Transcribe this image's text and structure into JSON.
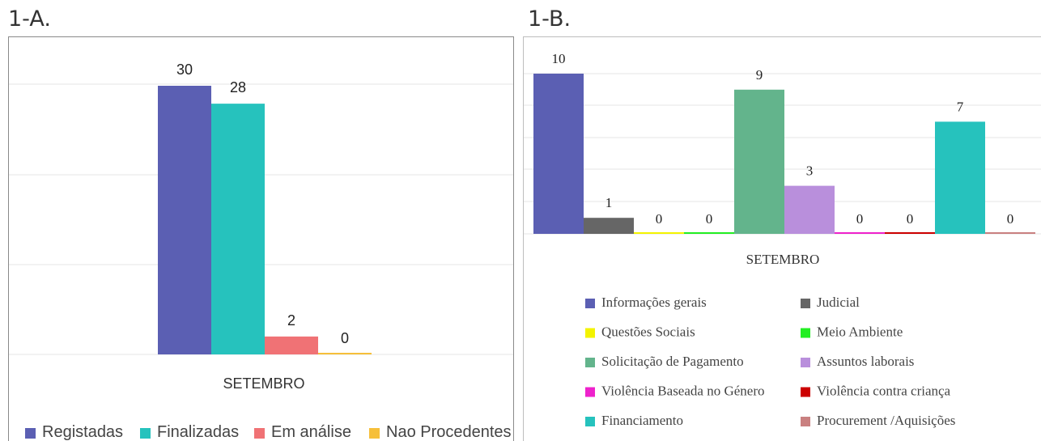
{
  "headings": {
    "a": "1-A.",
    "b": "1-B."
  },
  "chart_data": [
    {
      "type": "bar",
      "categories": [
        "SETEMBRO"
      ],
      "xlabel": "SETEMBRO",
      "ylim": [
        0,
        30
      ],
      "grid": true,
      "legend": "bottom",
      "series": [
        {
          "name": "Registadas",
          "values": [
            30
          ],
          "color": "#5b5fb3"
        },
        {
          "name": "Finalizadas",
          "values": [
            28
          ],
          "color": "#26c2bd"
        },
        {
          "name": "Em análise",
          "values": [
            2
          ],
          "color": "#f07275"
        },
        {
          "name": "Nao Procedentes",
          "values": [
            0
          ],
          "color": "#f6bf3a"
        }
      ]
    },
    {
      "type": "bar",
      "categories": [
        "SETEMBRO"
      ],
      "xlabel": "SETEMBRO",
      "ylim": [
        0,
        10
      ],
      "grid": true,
      "legend": "bottom",
      "series": [
        {
          "name": "Informações gerais",
          "values": [
            10
          ],
          "color": "#5b5fb3"
        },
        {
          "name": "Judicial",
          "values": [
            1
          ],
          "color": "#666666"
        },
        {
          "name": "Questões Sociais",
          "values": [
            0
          ],
          "color": "#f3f300"
        },
        {
          "name": "Meio Ambiente",
          "values": [
            0
          ],
          "color": "#22ee22"
        },
        {
          "name": "Solicitação de Pagamento",
          "values": [
            9
          ],
          "color": "#63b48c"
        },
        {
          "name": "Assuntos laborais",
          "values": [
            3
          ],
          "color": "#b98fdc"
        },
        {
          "name": "Violência Baseada no Género",
          "values": [
            0
          ],
          "color": "#ee22cc"
        },
        {
          "name": "Violência contra criança",
          "values": [
            0
          ],
          "color": "#cc0000"
        },
        {
          "name": "Financiamento",
          "values": [
            7
          ],
          "color": "#26c2bd"
        },
        {
          "name": "Procurement /Aquisições",
          "values": [
            0
          ],
          "color": "#c98080"
        }
      ]
    }
  ]
}
